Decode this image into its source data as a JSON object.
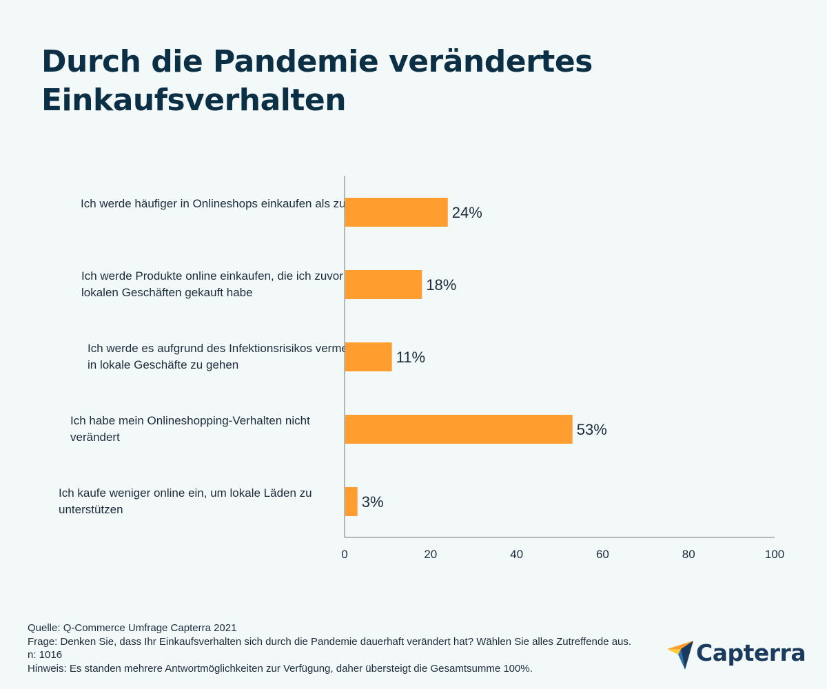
{
  "title": "Durch die Pandemie verändertes Einkaufsverhalten",
  "chart_data": {
    "type": "bar",
    "orientation": "horizontal",
    "categories": [
      "Ich werde häufiger in Onlineshops einkaufen als zuvor",
      "Ich werde Produkte online einkaufen, die ich zuvor in lokalen Geschäften gekauft habe",
      "Ich werde es aufgrund des Infektionsrisikos vermeiden, in lokale Geschäfte zu gehen",
      "Ich habe mein Onlineshopping-Verhalten nicht verändert",
      "Ich kaufe weniger online ein, um lokale Läden zu unterstützen"
    ],
    "values": [
      24,
      18,
      11,
      53,
      3
    ],
    "value_labels": [
      "24%",
      "18%",
      "11%",
      "53%",
      "3%"
    ],
    "xlim": [
      0,
      100
    ],
    "xticks": [
      "0",
      "20",
      "40",
      "60",
      "80",
      "100"
    ],
    "grid": false,
    "bar_color": "#ff9d2e"
  },
  "footnote": {
    "source": "Quelle: Q-Commerce Umfrage Capterra 2021",
    "question": "Frage: Denken Sie, dass Ihr Einkaufsverhalten sich durch die Pandemie dauerhaft verändert hat? Wählen Sie alles Zutreffende aus. n: 1016",
    "note": "Hinweis: Es standen mehrere Antwortmöglichkeiten zur Verfügung, daher übersteigt die Gesamtsumme 100%."
  },
  "logo": {
    "text": "Capterra",
    "icon": "capterra-arrow-icon"
  }
}
